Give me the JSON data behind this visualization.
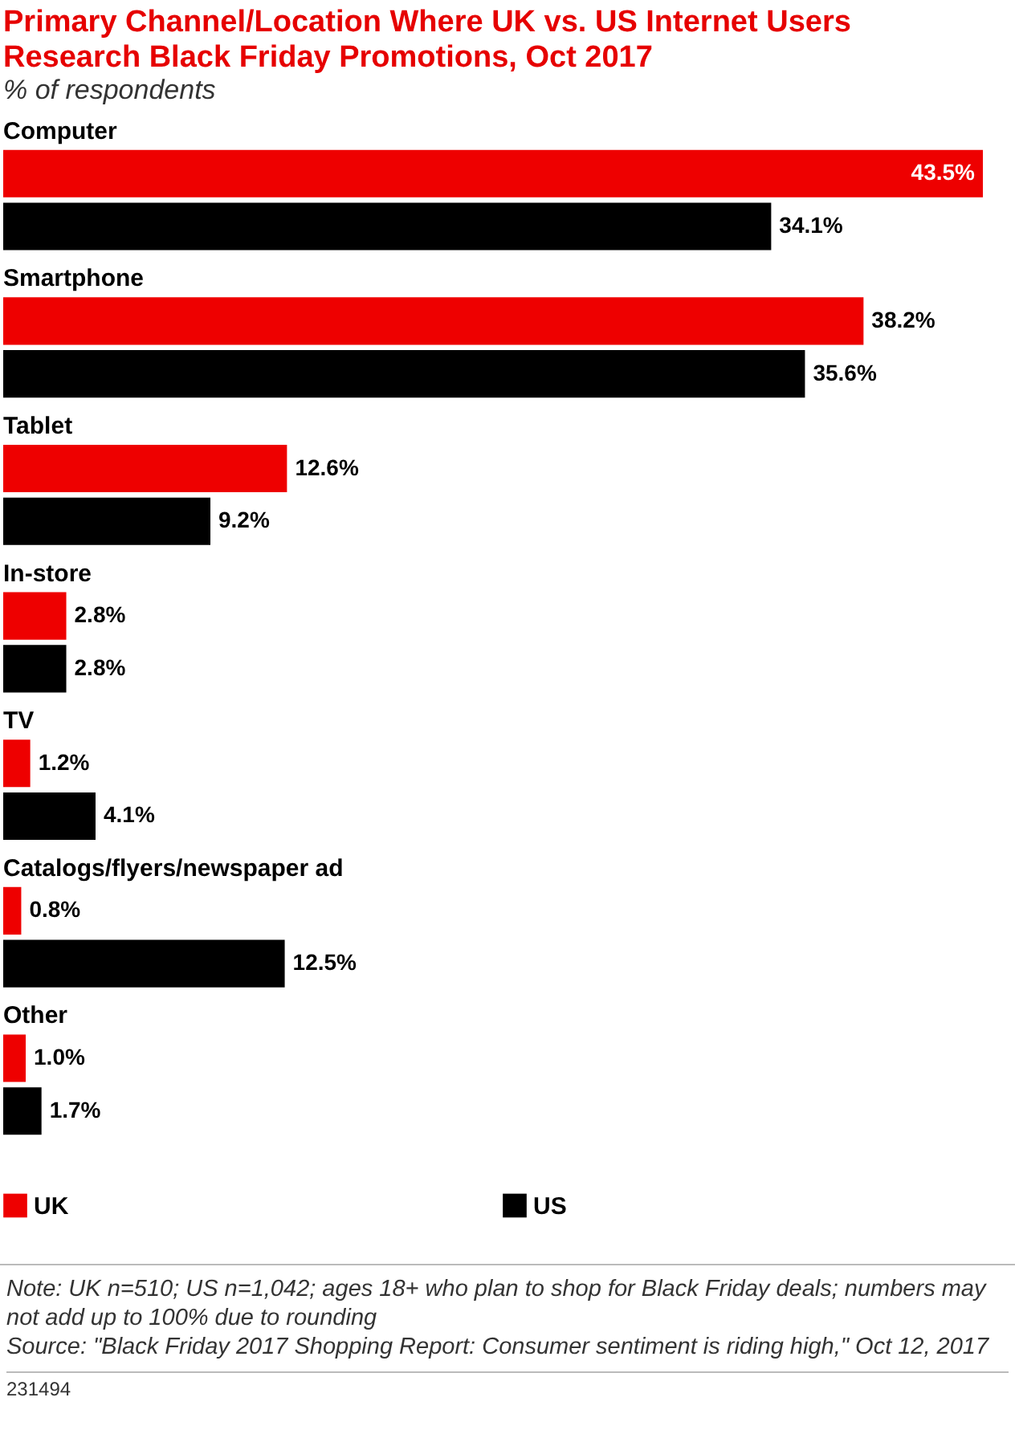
{
  "chart_data": {
    "type": "bar",
    "orientation": "horizontal",
    "title": "Primary Channel/Location Where UK vs. US Internet Users Research Black Friday Promotions, Oct 2017",
    "subtitle": "% of respondents",
    "categories": [
      "Computer",
      "Smartphone",
      "Tablet",
      "In-store",
      "TV",
      "Catalogs/flyers/newspaper ad",
      "Other"
    ],
    "series": [
      {
        "name": "UK",
        "color": "#ee0000",
        "values": [
          43.5,
          38.2,
          12.6,
          2.8,
          1.2,
          0.8,
          1.0
        ],
        "value_labels": [
          "43.5%",
          "38.2%",
          "12.6%",
          "2.8%",
          "1.2%",
          "0.8%",
          "1.0%"
        ]
      },
      {
        "name": "US",
        "color": "#000000",
        "values": [
          34.1,
          35.6,
          9.2,
          2.8,
          4.1,
          12.5,
          1.7
        ],
        "value_labels": [
          "34.1%",
          "35.6%",
          "9.2%",
          "2.8%",
          "4.1%",
          "12.5%",
          "1.7%"
        ]
      }
    ],
    "legend": "bottom left",
    "annotations": [
      "Note: UK n=510; US n=1,042; ages 18+ who plan to shop for Black Friday deals; numbers may not add up to 100% due to rounding",
      "Source: \"Black Friday 2017 Shopping Report: Consumer sentiment is riding high,\" Oct 12, 2017",
      "231494"
    ]
  }
}
